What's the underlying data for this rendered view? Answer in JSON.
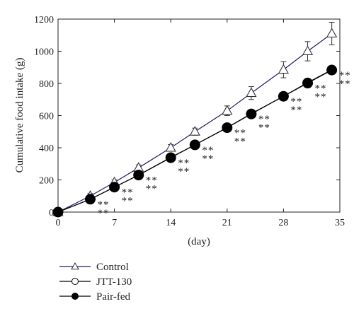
{
  "chart_data": {
    "type": "line",
    "title": "",
    "xlabel": "(day)",
    "ylabel": "Cumulative food intake (g)",
    "xlim": [
      0,
      35
    ],
    "ylim": [
      0,
      1200
    ],
    "xticks": [
      0,
      7,
      14,
      21,
      28,
      35
    ],
    "yticks": [
      0,
      200,
      400,
      600,
      800,
      1000,
      1200
    ],
    "grid": false,
    "legend_position": "bottom-left",
    "x": [
      0,
      4,
      7,
      10,
      14,
      17,
      21,
      24,
      28,
      31,
      34
    ],
    "significance_marker": "**",
    "significance_positions": [
      4,
      7,
      10,
      14,
      17,
      21,
      24,
      28,
      31,
      34
    ],
    "series": [
      {
        "name": "Control",
        "marker": "open-triangle",
        "color": "#1a1a6e",
        "values": [
          0,
          100,
          185,
          275,
          400,
          500,
          630,
          740,
          885,
          1000,
          1110
        ],
        "error": [
          5,
          15,
          15,
          18,
          20,
          22,
          30,
          40,
          50,
          60,
          70
        ]
      },
      {
        "name": "JTT-130",
        "marker": "open-circle",
        "color": "#000000",
        "values": [
          0,
          80,
          155,
          230,
          340,
          418,
          525,
          612,
          720,
          805,
          885
        ],
        "error": [
          3,
          8,
          8,
          10,
          10,
          12,
          12,
          14,
          14,
          16,
          16
        ]
      },
      {
        "name": "Pair-fed",
        "marker": "filled-circle",
        "color": "#000000",
        "values": [
          0,
          80,
          155,
          230,
          338,
          418,
          525,
          610,
          720,
          802,
          883
        ],
        "error": [
          3,
          8,
          8,
          10,
          10,
          12,
          12,
          14,
          14,
          16,
          16
        ]
      }
    ]
  }
}
